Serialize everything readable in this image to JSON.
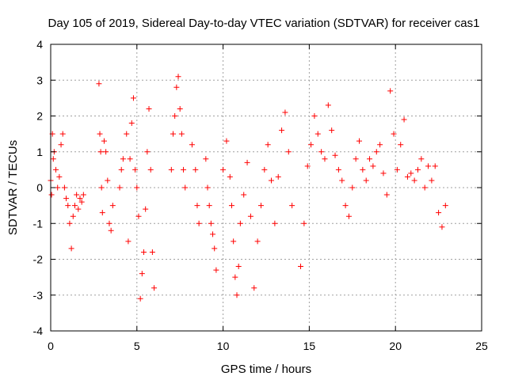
{
  "chart_data": {
    "type": "scatter",
    "title": "Day 105 of 2019, Sidereal Day-to-day VTEC variation (SDTVAR) for receiver cas1",
    "xlabel": "GPS time / hours",
    "ylabel": "SDTVAR / TECUs",
    "xlim": [
      0,
      25
    ],
    "ylim": [
      -4,
      4
    ],
    "xticks": [
      0,
      5,
      10,
      15,
      20,
      25
    ],
    "yticks": [
      -4,
      -3,
      -2,
      -1,
      0,
      1,
      2,
      3,
      4
    ],
    "grid": true,
    "marker": "+",
    "series": [
      {
        "name": "SDTVAR",
        "color": "#ff0000",
        "x": [
          0.0,
          0.05,
          0.1,
          0.15,
          0.2,
          0.3,
          0.4,
          0.5,
          0.6,
          0.7,
          0.8,
          0.9,
          1.0,
          1.1,
          1.2,
          1.3,
          1.4,
          1.5,
          1.6,
          1.7,
          1.8,
          1.9,
          2.8,
          2.85,
          2.9,
          2.95,
          3.0,
          3.1,
          3.2,
          3.3,
          3.4,
          3.5,
          3.6,
          4.0,
          4.1,
          4.2,
          4.4,
          4.5,
          4.6,
          4.7,
          4.8,
          4.9,
          5.0,
          5.1,
          5.2,
          5.3,
          5.4,
          5.5,
          5.6,
          5.7,
          5.8,
          5.9,
          6.0,
          7.0,
          7.1,
          7.2,
          7.3,
          7.4,
          7.5,
          7.6,
          7.7,
          7.8,
          8.2,
          8.4,
          8.5,
          8.6,
          9.0,
          9.1,
          9.2,
          9.3,
          9.4,
          9.5,
          9.6,
          10.0,
          10.2,
          10.4,
          10.5,
          10.6,
          10.7,
          10.8,
          10.9,
          11.0,
          11.2,
          11.4,
          11.6,
          11.8,
          12.0,
          12.2,
          12.4,
          12.6,
          12.8,
          13.0,
          13.2,
          13.4,
          13.6,
          13.8,
          14.0,
          14.5,
          14.7,
          14.9,
          15.1,
          15.3,
          15.5,
          15.7,
          15.9,
          16.1,
          16.3,
          16.5,
          16.7,
          16.9,
          17.1,
          17.3,
          17.5,
          17.7,
          17.9,
          18.1,
          18.3,
          18.5,
          18.7,
          18.9,
          19.1,
          19.3,
          19.5,
          19.7,
          19.9,
          20.1,
          20.3,
          20.5,
          20.7,
          20.9,
          21.1,
          21.3,
          21.5,
          21.7,
          21.9,
          22.1,
          22.3,
          22.5,
          22.7,
          22.9
        ],
        "y": [
          0.2,
          -0.2,
          1.5,
          0.8,
          1.0,
          0.5,
          0.0,
          0.3,
          1.2,
          1.5,
          0.0,
          -0.3,
          -0.5,
          -1.0,
          -1.7,
          -0.8,
          -0.5,
          -0.2,
          -0.6,
          -0.3,
          -0.4,
          -0.2,
          2.9,
          1.5,
          1.0,
          0.0,
          -0.7,
          1.3,
          1.0,
          0.2,
          -1.0,
          -1.2,
          -0.5,
          0.0,
          0.5,
          0.8,
          1.5,
          -1.5,
          0.8,
          1.8,
          2.5,
          0.5,
          0.0,
          -0.8,
          -3.1,
          -2.4,
          -1.8,
          -0.6,
          1.0,
          2.2,
          0.5,
          -1.8,
          -2.8,
          0.5,
          1.5,
          2.0,
          2.8,
          3.1,
          2.2,
          1.5,
          0.5,
          0.0,
          1.2,
          0.5,
          -0.5,
          -1.0,
          0.8,
          0.0,
          -0.5,
          -1.0,
          -1.3,
          -1.7,
          -2.3,
          0.5,
          1.3,
          0.3,
          -0.5,
          -1.5,
          -2.5,
          -3.0,
          -2.2,
          -1.0,
          -0.2,
          0.7,
          -0.8,
          -2.8,
          -1.5,
          -0.5,
          0.5,
          1.2,
          0.2,
          -1.0,
          0.3,
          1.6,
          2.1,
          1.0,
          -0.5,
          -2.2,
          -1.0,
          0.6,
          1.2,
          2.0,
          1.5,
          1.0,
          0.8,
          2.3,
          1.6,
          0.9,
          0.5,
          0.2,
          -0.5,
          -0.8,
          0.0,
          0.8,
          1.3,
          0.5,
          0.2,
          0.8,
          0.6,
          1.0,
          1.2,
          0.4,
          -0.2,
          2.7,
          1.5,
          0.5,
          1.2,
          1.9,
          0.3,
          0.4,
          0.2,
          0.5,
          0.8,
          0.0,
          0.6,
          0.2,
          0.6,
          -0.7,
          -1.1,
          -0.5
        ]
      }
    ]
  }
}
